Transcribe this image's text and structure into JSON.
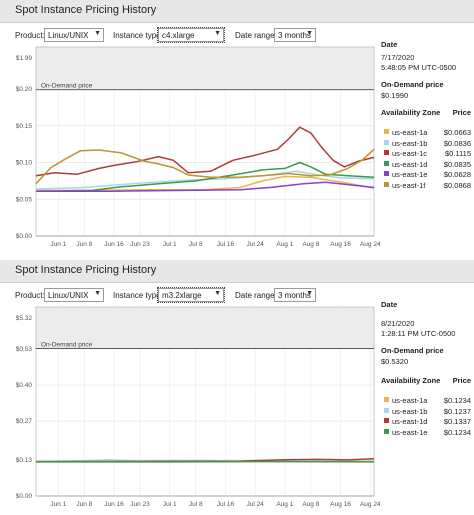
{
  "panels": [
    {
      "title": "Spot Instance Pricing History",
      "controls": {
        "product_label": "Product:",
        "product_value": "Linux/UNIX",
        "instance_label": "Instance type:",
        "instance_value": "c4.xlarge",
        "range_label": "Date range:",
        "range_value": "3 months"
      },
      "info": {
        "date_label": "Date",
        "date_value": "7/17/2020",
        "time_value": "5:48:05 PM UTC-0500",
        "ondemand_label": "On-Demand price",
        "ondemand_value": "$0.1990",
        "az_header": "Availability Zone",
        "price_header": "Price",
        "zones": [
          {
            "zone": "us-east-1a",
            "price": "$0.0663",
            "color": "#e8b64a"
          },
          {
            "zone": "us-east-1b",
            "price": "$0.0836",
            "color": "#a9d3e8"
          },
          {
            "zone": "us-east-1c",
            "price": "$0.1115",
            "color": "#b03a3a"
          },
          {
            "zone": "us-east-1d",
            "price": "$0.0835",
            "color": "#3c9a4c"
          },
          {
            "zone": "us-east-1e",
            "price": "$0.0628",
            "color": "#8a3fd1"
          },
          {
            "zone": "us-east-1f",
            "price": "$0.0868",
            "color": "#b9962e"
          }
        ]
      }
    },
    {
      "title": "Spot Instance Pricing History",
      "controls": {
        "product_label": "Product:",
        "product_value": "Linux/UNIX",
        "instance_label": "Instance type:",
        "instance_value": "m3.2xlarge",
        "range_label": "Date range:",
        "range_value": "3 months"
      },
      "info": {
        "date_label": "Date",
        "date_value": "8/21/2020",
        "time_value": "1:28:11 PM UTC-0500",
        "ondemand_label": "On-Demand price",
        "ondemand_value": "$0.5320",
        "az_header": "Availability Zone",
        "price_header": "Price",
        "zones": [
          {
            "zone": "us-east-1a",
            "price": "$0.1234",
            "color": "#e8b64a"
          },
          {
            "zone": "us-east-1b",
            "price": "$0.1237",
            "color": "#a9d3e8"
          },
          {
            "zone": "us-east-1d",
            "price": "$0.1337",
            "color": "#b03a3a"
          },
          {
            "zone": "us-east-1e",
            "price": "$0.1234",
            "color": "#3c9a4c"
          }
        ]
      }
    }
  ],
  "chart_data": [
    {
      "type": "line",
      "title": "",
      "ondemand_label": "On-Demand price",
      "ondemand_value": 0.199,
      "y_break_label": "$1.99",
      "y_break_value": 1.99,
      "yticks": [
        {
          "label": "$0.20",
          "value": 0.2
        },
        {
          "label": "$0.15",
          "value": 0.15
        },
        {
          "label": "$0.10",
          "value": 0.1
        },
        {
          "label": "$0.05",
          "value": 0.05
        },
        {
          "label": "$0.00",
          "value": 0.0
        }
      ],
      "ylim": [
        0,
        0.2
      ],
      "x_range": [
        "2020-05-26",
        "2020-08-25"
      ],
      "xticks": [
        {
          "label": "Jun 1",
          "date": "2020-06-01"
        },
        {
          "label": "Jun 8",
          "date": "2020-06-08"
        },
        {
          "label": "Jun 16",
          "date": "2020-06-16"
        },
        {
          "label": "Jun 23",
          "date": "2020-06-23"
        },
        {
          "label": "Jul 1",
          "date": "2020-07-01"
        },
        {
          "label": "Jul 8",
          "date": "2020-07-08"
        },
        {
          "label": "Jul 16",
          "date": "2020-07-16"
        },
        {
          "label": "Jul 24",
          "date": "2020-07-24"
        },
        {
          "label": "Aug 1",
          "date": "2020-08-01"
        },
        {
          "label": "Aug 8",
          "date": "2020-08-08"
        },
        {
          "label": "Aug 16",
          "date": "2020-08-16"
        },
        {
          "label": "Aug 24",
          "date": "2020-08-24"
        }
      ],
      "series": [
        {
          "name": "us-east-1a",
          "color": "#e8b64a",
          "points": [
            [
              "2020-05-26",
              0.062
            ],
            [
              "2020-06-10",
              0.062
            ],
            [
              "2020-06-25",
              0.063
            ],
            [
              "2020-07-10",
              0.063
            ],
            [
              "2020-07-20",
              0.066
            ],
            [
              "2020-07-26",
              0.075
            ],
            [
              "2020-08-01",
              0.081
            ],
            [
              "2020-08-08",
              0.08
            ],
            [
              "2020-08-14",
              0.075
            ],
            [
              "2020-08-20",
              0.07
            ],
            [
              "2020-08-25",
              0.065
            ]
          ]
        },
        {
          "name": "us-east-1b",
          "color": "#a9d3e8",
          "points": [
            [
              "2020-05-26",
              0.064
            ],
            [
              "2020-06-08",
              0.066
            ],
            [
              "2020-06-23",
              0.072
            ],
            [
              "2020-07-06",
              0.076
            ],
            [
              "2020-07-16",
              0.078
            ],
            [
              "2020-07-26",
              0.082
            ],
            [
              "2020-08-04",
              0.088
            ],
            [
              "2020-08-10",
              0.083
            ],
            [
              "2020-08-16",
              0.079
            ],
            [
              "2020-08-25",
              0.078
            ]
          ]
        },
        {
          "name": "us-east-1c",
          "color": "#b03a3a",
          "points": [
            [
              "2020-05-26",
              0.082
            ],
            [
              "2020-05-31",
              0.086
            ],
            [
              "2020-06-06",
              0.084
            ],
            [
              "2020-06-12",
              0.092
            ],
            [
              "2020-06-16",
              0.096
            ],
            [
              "2020-06-22",
              0.101
            ],
            [
              "2020-06-28",
              0.108
            ],
            [
              "2020-07-02",
              0.103
            ],
            [
              "2020-07-06",
              0.086
            ],
            [
              "2020-07-12",
              0.088
            ],
            [
              "2020-07-18",
              0.103
            ],
            [
              "2020-07-24",
              0.11
            ],
            [
              "2020-07-30",
              0.118
            ],
            [
              "2020-08-02",
              0.132
            ],
            [
              "2020-08-05",
              0.148
            ],
            [
              "2020-08-08",
              0.14
            ],
            [
              "2020-08-11",
              0.12
            ],
            [
              "2020-08-14",
              0.103
            ],
            [
              "2020-08-17",
              0.094
            ],
            [
              "2020-08-21",
              0.102
            ],
            [
              "2020-08-25",
              0.107
            ]
          ]
        },
        {
          "name": "us-east-1d",
          "color": "#3c9a4c",
          "points": [
            [
              "2020-05-26",
              0.061
            ],
            [
              "2020-06-10",
              0.062
            ],
            [
              "2020-06-18",
              0.067
            ],
            [
              "2020-06-28",
              0.071
            ],
            [
              "2020-07-08",
              0.075
            ],
            [
              "2020-07-18",
              0.083
            ],
            [
              "2020-07-26",
              0.09
            ],
            [
              "2020-08-01",
              0.092
            ],
            [
              "2020-08-05",
              0.1
            ],
            [
              "2020-08-08",
              0.094
            ],
            [
              "2020-08-12",
              0.084
            ],
            [
              "2020-08-18",
              0.082
            ],
            [
              "2020-08-25",
              0.08
            ]
          ]
        },
        {
          "name": "us-east-1e",
          "color": "#8a3fd1",
          "points": [
            [
              "2020-05-26",
              0.061
            ],
            [
              "2020-06-15",
              0.061
            ],
            [
              "2020-07-05",
              0.062
            ],
            [
              "2020-07-20",
              0.063
            ],
            [
              "2020-07-28",
              0.066
            ],
            [
              "2020-08-06",
              0.071
            ],
            [
              "2020-08-12",
              0.073
            ],
            [
              "2020-08-18",
              0.07
            ],
            [
              "2020-08-25",
              0.066
            ]
          ]
        },
        {
          "name": "us-east-1f",
          "color": "#b9962e",
          "points": [
            [
              "2020-05-26",
              0.071
            ],
            [
              "2020-05-30",
              0.093
            ],
            [
              "2020-06-03",
              0.105
            ],
            [
              "2020-06-07",
              0.116
            ],
            [
              "2020-06-12",
              0.117
            ],
            [
              "2020-06-18",
              0.113
            ],
            [
              "2020-06-24",
              0.102
            ],
            [
              "2020-06-28",
              0.098
            ],
            [
              "2020-07-02",
              0.093
            ],
            [
              "2020-07-06",
              0.083
            ],
            [
              "2020-07-12",
              0.08
            ],
            [
              "2020-07-20",
              0.08
            ],
            [
              "2020-07-26",
              0.082
            ],
            [
              "2020-08-02",
              0.085
            ],
            [
              "2020-08-08",
              0.082
            ],
            [
              "2020-08-13",
              0.083
            ],
            [
              "2020-08-18",
              0.092
            ],
            [
              "2020-08-22",
              0.104
            ],
            [
              "2020-08-25",
              0.118
            ]
          ]
        }
      ]
    },
    {
      "type": "line",
      "title": "",
      "ondemand_label": "On-Demand price",
      "ondemand_value": 0.532,
      "y_break_label": "$5.32",
      "y_break_value": 5.32,
      "yticks": [
        {
          "label": "$0.53",
          "value": 0.53
        },
        {
          "label": "$0.40",
          "value": 0.4
        },
        {
          "label": "$0.27",
          "value": 0.27
        },
        {
          "label": "$0.13",
          "value": 0.13
        },
        {
          "label": "$0.00",
          "value": 0.0
        }
      ],
      "ylim": [
        0,
        0.53
      ],
      "x_range": [
        "2020-05-26",
        "2020-08-25"
      ],
      "xticks": [
        {
          "label": "Jun 1",
          "date": "2020-06-01"
        },
        {
          "label": "Jun 8",
          "date": "2020-06-08"
        },
        {
          "label": "Jun 16",
          "date": "2020-06-16"
        },
        {
          "label": "Jun 23",
          "date": "2020-06-23"
        },
        {
          "label": "Jul 1",
          "date": "2020-07-01"
        },
        {
          "label": "Jul 8",
          "date": "2020-07-08"
        },
        {
          "label": "Jul 16",
          "date": "2020-07-16"
        },
        {
          "label": "Jul 24",
          "date": "2020-07-24"
        },
        {
          "label": "Aug 1",
          "date": "2020-08-01"
        },
        {
          "label": "Aug 8",
          "date": "2020-08-08"
        },
        {
          "label": "Aug 16",
          "date": "2020-08-16"
        },
        {
          "label": "Aug 24",
          "date": "2020-08-24"
        }
      ],
      "series": [
        {
          "name": "us-east-1a",
          "color": "#e8b64a",
          "points": [
            [
              "2020-05-26",
              0.124
            ],
            [
              "2020-07-15",
              0.124
            ],
            [
              "2020-08-01",
              0.126
            ],
            [
              "2020-08-25",
              0.125
            ]
          ]
        },
        {
          "name": "us-east-1b",
          "color": "#a9d3e8",
          "points": [
            [
              "2020-05-26",
              0.124
            ],
            [
              "2020-06-08",
              0.127
            ],
            [
              "2020-06-15",
              0.131
            ],
            [
              "2020-06-22",
              0.126
            ],
            [
              "2020-07-05",
              0.128
            ],
            [
              "2020-07-20",
              0.126
            ],
            [
              "2020-08-25",
              0.124
            ]
          ]
        },
        {
          "name": "us-east-1d",
          "color": "#b03a3a",
          "points": [
            [
              "2020-05-26",
              0.124
            ],
            [
              "2020-07-20",
              0.126
            ],
            [
              "2020-08-01",
              0.131
            ],
            [
              "2020-08-10",
              0.132
            ],
            [
              "2020-08-18",
              0.13
            ],
            [
              "2020-08-25",
              0.134
            ]
          ]
        },
        {
          "name": "us-east-1e",
          "color": "#3c9a4c",
          "points": [
            [
              "2020-05-26",
              0.123
            ],
            [
              "2020-07-01",
              0.123
            ],
            [
              "2020-08-01",
              0.124
            ],
            [
              "2020-08-25",
              0.123
            ]
          ]
        }
      ]
    }
  ]
}
